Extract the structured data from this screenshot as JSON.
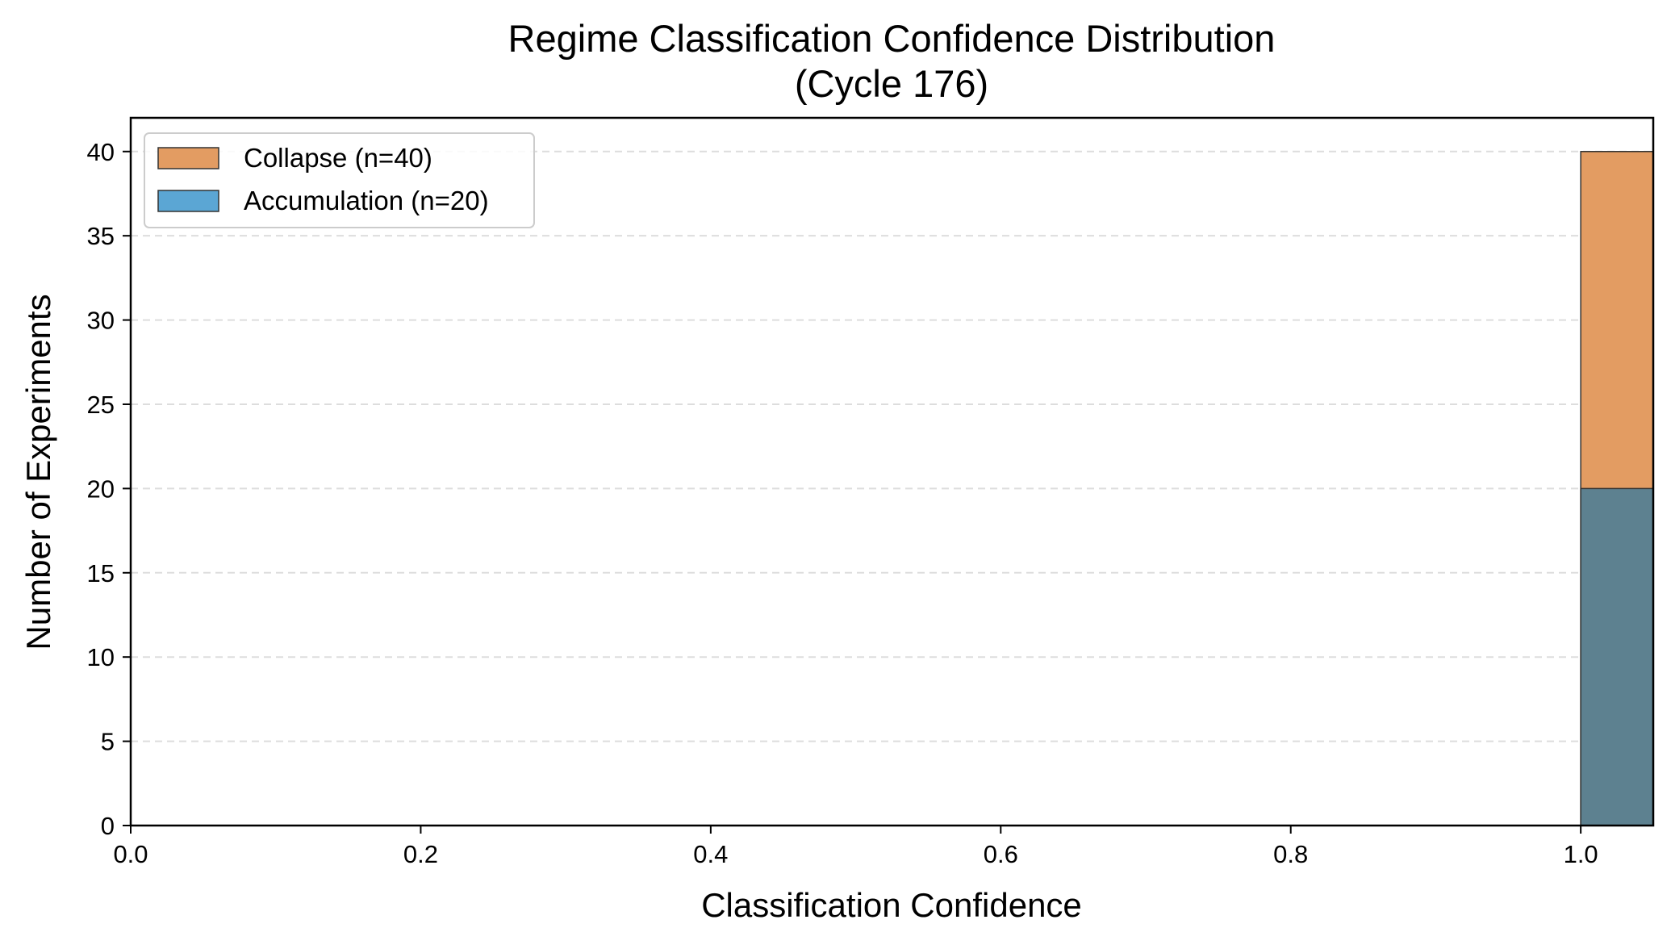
{
  "chart_data": {
    "type": "bar",
    "title": "Regime Classification Confidence Distribution",
    "subtitle": "(Cycle 176)",
    "xlabel": "Classification Confidence",
    "ylabel": "Number of Experiments",
    "xlim": [
      0.0,
      1.05
    ],
    "ylim": [
      0,
      42
    ],
    "xticks": [
      0.0,
      0.2,
      0.4,
      0.6,
      0.8,
      1.0
    ],
    "xtick_labels": [
      "0.0",
      "0.2",
      "0.4",
      "0.6",
      "0.8",
      "1.0"
    ],
    "yticks": [
      0,
      5,
      10,
      15,
      20,
      25,
      30,
      35,
      40
    ],
    "ytick_labels": [
      "0",
      "5",
      "10",
      "15",
      "20",
      "25",
      "30",
      "35",
      "40"
    ],
    "grid": "y, dashed",
    "legend_placement": "top-left",
    "series": [
      {
        "name": "Collapse (n=40)",
        "color": "#e39c62",
        "bins": [
          {
            "x0": 1.0,
            "x1": 1.05,
            "count": 40
          }
        ]
      },
      {
        "name": "Accumulation (n=20)",
        "color": "#5ba6d4",
        "bins": [
          {
            "x0": 1.0,
            "x1": 1.05,
            "count": 20
          }
        ]
      }
    ],
    "overlap_color": "#5d8190"
  }
}
